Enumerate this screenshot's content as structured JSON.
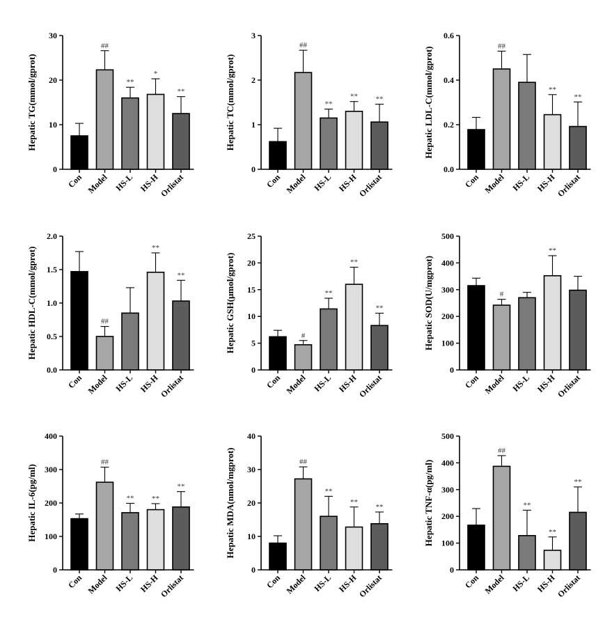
{
  "figure": {
    "categories": [
      "Con",
      "Model",
      "HS-L",
      "HS-H",
      "Orlistat"
    ],
    "colors": [
      "#000000",
      "#a6a6a6",
      "#7a7a7a",
      "#dedede",
      "#5c5c5c"
    ]
  },
  "chart_data": [
    {
      "type": "bar",
      "ylabel": "Hepatic TG(mmol/gprot)",
      "ylim": [
        0,
        30
      ],
      "yticks": [
        0,
        10,
        20,
        30
      ],
      "categories": [
        "Con",
        "Model",
        "HS-L",
        "HS-H",
        "Orlistat"
      ],
      "values": [
        7.5,
        22.3,
        16.0,
        16.8,
        12.5
      ],
      "errors": [
        2.8,
        4.3,
        2.4,
        3.5,
        3.8
      ],
      "annotations": [
        "",
        "##",
        "**",
        "*",
        "**"
      ]
    },
    {
      "type": "bar",
      "ylabel": "Hepatic TC(mmol/gprot)",
      "ylim": [
        0,
        3
      ],
      "yticks": [
        0,
        1,
        2,
        3
      ],
      "categories": [
        "Con",
        "Model",
        "HS-L",
        "HS-H",
        "Orlistat"
      ],
      "values": [
        0.62,
        2.17,
        1.15,
        1.3,
        1.06
      ],
      "errors": [
        0.3,
        0.5,
        0.2,
        0.22,
        0.4
      ],
      "annotations": [
        "",
        "##",
        "**",
        "**",
        "**"
      ]
    },
    {
      "type": "bar",
      "ylabel": "Hepatic LDL-C(mmol/gprot)",
      "ylim": [
        0,
        0.6
      ],
      "yticks": [
        0.0,
        0.2,
        0.4,
        0.6
      ],
      "categories": [
        "Con",
        "Model",
        "HS-L",
        "HS-H",
        "Orlistat"
      ],
      "values": [
        0.178,
        0.45,
        0.39,
        0.245,
        0.192
      ],
      "errors": [
        0.055,
        0.08,
        0.125,
        0.09,
        0.11
      ],
      "annotations": [
        "",
        "##",
        "",
        "**",
        "**"
      ]
    },
    {
      "type": "bar",
      "ylabel": "Hepatic HDL-C(mmol/gprot)",
      "ylim": [
        0,
        2.0
      ],
      "yticks": [
        0.0,
        0.5,
        1.0,
        1.5,
        2.0
      ],
      "categories": [
        "Con",
        "Model",
        "HS-L",
        "HS-H",
        "Orlistat"
      ],
      "values": [
        1.47,
        0.5,
        0.85,
        1.46,
        1.03
      ],
      "errors": [
        0.3,
        0.15,
        0.38,
        0.29,
        0.31
      ],
      "annotations": [
        "",
        "##",
        "",
        "**",
        "**"
      ]
    },
    {
      "type": "bar",
      "ylabel": "Hepatic GSH(μmol/gprot)",
      "ylim": [
        0,
        25
      ],
      "yticks": [
        0,
        5,
        10,
        15,
        20,
        25
      ],
      "categories": [
        "Con",
        "Model",
        "HS-L",
        "HS-H",
        "Orlistat"
      ],
      "values": [
        6.2,
        4.7,
        11.4,
        16.0,
        8.3
      ],
      "errors": [
        1.2,
        0.8,
        2.0,
        3.2,
        2.3
      ],
      "annotations": [
        "",
        "#",
        "**",
        "**",
        "**"
      ]
    },
    {
      "type": "bar",
      "ylabel": "Hepatic SOD(U/mgprot)",
      "ylim": [
        0,
        500
      ],
      "yticks": [
        0,
        100,
        200,
        300,
        400,
        500
      ],
      "categories": [
        "Con",
        "Model",
        "HS-L",
        "HS-H",
        "Orlistat"
      ],
      "values": [
        315,
        242,
        270,
        352,
        298
      ],
      "errors": [
        28,
        22,
        20,
        75,
        52
      ],
      "annotations": [
        "",
        "#",
        "",
        "**",
        ""
      ]
    },
    {
      "type": "bar",
      "ylabel": "Hepatic IL-6(pg/ml)",
      "ylim": [
        0,
        400
      ],
      "yticks": [
        0,
        100,
        200,
        300,
        400
      ],
      "categories": [
        "Con",
        "Model",
        "HS-L",
        "HS-H",
        "Orlistat"
      ],
      "values": [
        153,
        262,
        171,
        180,
        188
      ],
      "errors": [
        14,
        45,
        28,
        18,
        46
      ],
      "annotations": [
        "",
        "##",
        "**",
        "**",
        "**"
      ]
    },
    {
      "type": "bar",
      "ylabel": "Hepatic MDA(nmol/mgprot)",
      "ylim": [
        0,
        40
      ],
      "yticks": [
        0,
        10,
        20,
        30,
        40
      ],
      "categories": [
        "Con",
        "Model",
        "HS-L",
        "HS-H",
        "Orlistat"
      ],
      "values": [
        8.0,
        27.2,
        16.0,
        12.8,
        13.8
      ],
      "errors": [
        2.2,
        3.6,
        6.0,
        6.0,
        3.5
      ],
      "annotations": [
        "",
        "##",
        "**",
        "**",
        "**"
      ]
    },
    {
      "type": "bar",
      "ylabel": "Hepatic TNF-α(pg/ml)",
      "ylim": [
        0,
        500
      ],
      "yticks": [
        0,
        100,
        200,
        300,
        400,
        500
      ],
      "categories": [
        "Con",
        "Model",
        "HS-L",
        "HS-H",
        "Orlistat"
      ],
      "values": [
        167,
        387,
        128,
        73,
        215
      ],
      "errors": [
        62,
        40,
        95,
        50,
        95
      ],
      "annotations": [
        "",
        "##",
        "**",
        "**",
        "**"
      ]
    }
  ]
}
